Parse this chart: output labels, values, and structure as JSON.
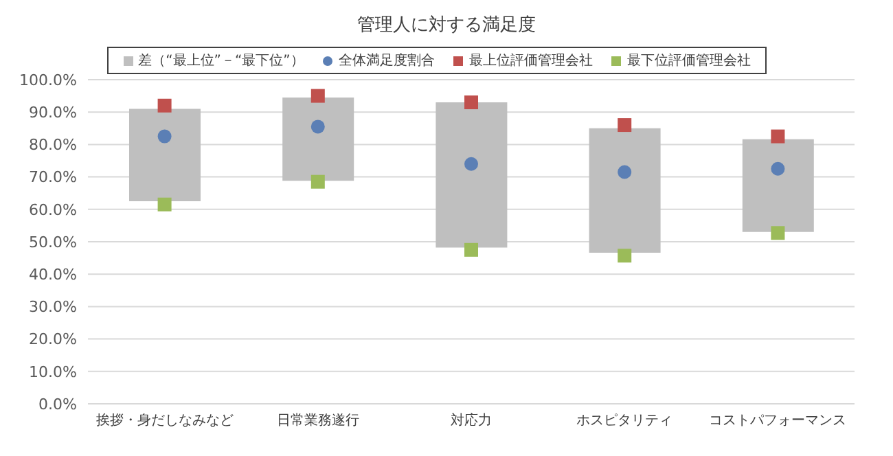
{
  "chart_data": {
    "type": "bar",
    "title": "管理人に対する満足度",
    "categories": [
      "挨拶・身だしなみなど",
      "日常業務遂行",
      "対応力",
      "ホスピタリティ",
      "コストパフォーマンス"
    ],
    "series": [
      {
        "name": "差（“最上位”－“最下位”）",
        "color": "#bfbfbf",
        "base": [
          62.5,
          68.8,
          48.2,
          46.6,
          53
        ],
        "values": [
          28.5,
          25.7,
          44.8,
          38.4,
          28.6
        ]
      },
      {
        "type": "scatter",
        "name": "全体満足度割合",
        "color": "#5b7fb5",
        "marker": "circle",
        "x": [
          "挨拶・身だしなみなど",
          "日常業務遂行",
          "対応力",
          "ホスピタリティ",
          "コストパフォーマンス"
        ],
        "values": [
          82.5,
          85.5,
          74,
          71.5,
          72.5
        ]
      },
      {
        "type": "scatter",
        "name": "最上位評価管理会社",
        "color": "#c0504d",
        "marker": "square",
        "x": [
          "挨拶・身だしなみなど",
          "日常業務遂行",
          "対応力",
          "ホスピタリティ",
          "コストパフォーマンス"
        ],
        "values": [
          92,
          95,
          93,
          86,
          82.5
        ]
      },
      {
        "type": "scatter",
        "name": "最下位評価管理会社",
        "color": "#9bbb59",
        "marker": "square",
        "x": [
          "挨拶・身だしなみなど",
          "日常業務遂行",
          "対応力",
          "ホスピタリティ",
          "コストパフォーマンス"
        ],
        "values": [
          61.5,
          68.5,
          47.5,
          45.7,
          52.7
        ]
      }
    ],
    "ylim": [
      0,
      100
    ],
    "yticks": [
      {
        "value": 0,
        "label": "0.0%"
      },
      {
        "value": 10,
        "label": "10.0%"
      },
      {
        "value": 20,
        "label": "20.0%"
      },
      {
        "value": 30,
        "label": "30.0%"
      },
      {
        "value": 40,
        "label": "40.0%"
      },
      {
        "value": 50,
        "label": "50.0%"
      },
      {
        "value": 60,
        "label": "60.0%"
      },
      {
        "value": 70,
        "label": "70.0%"
      },
      {
        "value": 80,
        "label": "80.0%"
      },
      {
        "value": 90,
        "label": "90.0%"
      },
      {
        "value": 100,
        "label": "100.0%"
      }
    ],
    "grid": "y",
    "legend": "top"
  }
}
